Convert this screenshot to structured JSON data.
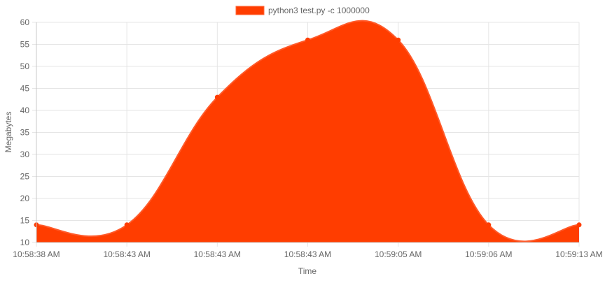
{
  "chart_data": {
    "type": "area",
    "title": "",
    "xlabel": "Time",
    "ylabel": "Megabytes",
    "categories": [
      "10:58:38 AM",
      "10:58:43 AM",
      "10:58:43 AM",
      "10:58:43 AM",
      "10:59:05 AM",
      "10:59:06 AM",
      "10:59:13 AM"
    ],
    "series": [
      {
        "name": "python3 test.py -c 1000000",
        "values": [
          14,
          14,
          43,
          56,
          56,
          14,
          14
        ],
        "color": "#ff3d00"
      }
    ],
    "ylim": [
      10,
      60
    ],
    "yticks": [
      10,
      15,
      20,
      25,
      30,
      35,
      40,
      45,
      50,
      55,
      60
    ],
    "grid": true,
    "legend_position": "top-center"
  }
}
